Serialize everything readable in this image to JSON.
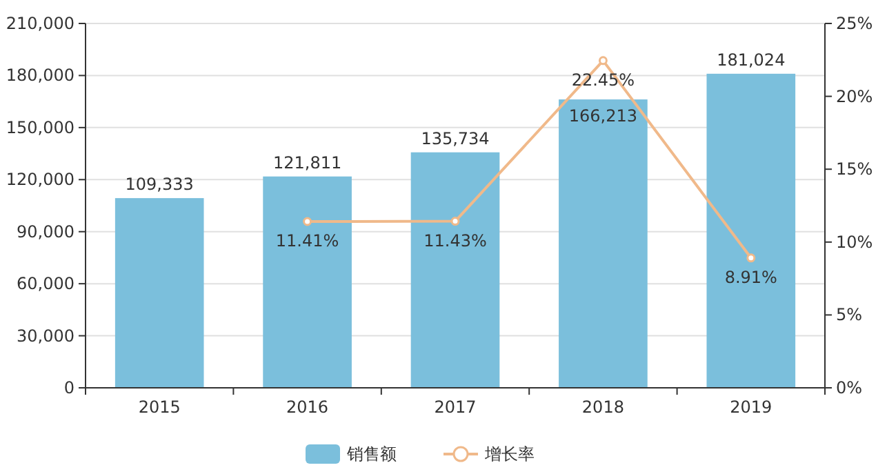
{
  "chart_data": {
    "type": "bar",
    "categories": [
      "2015",
      "2016",
      "2017",
      "2018",
      "2019"
    ],
    "series": [
      {
        "name": "销售额",
        "color": "#7bbfdc",
        "values": [
          109333,
          121811,
          135734,
          166213,
          181024
        ],
        "value_labels": [
          "109,333",
          "121,811",
          "135,734",
          "166,213",
          "181,024"
        ]
      },
      {
        "name": "增长率",
        "type": "line",
        "axis": "y2",
        "color": "#f0b98a",
        "values": [
          null,
          11.41,
          11.43,
          22.45,
          8.91
        ],
        "value_labels": [
          null,
          "11.41%",
          "11.43%",
          "22.45%",
          "8.91%"
        ]
      }
    ],
    "ylim": [
      0,
      210000
    ],
    "yticks": [
      {
        "value": 0,
        "label": "0"
      },
      {
        "value": 30000,
        "label": "30,000"
      },
      {
        "value": 60000,
        "label": "60,000"
      },
      {
        "value": 90000,
        "label": "90,000"
      },
      {
        "value": 120000,
        "label": "120,000"
      },
      {
        "value": 150000,
        "label": "150,000"
      },
      {
        "value": 180000,
        "label": "180,000"
      },
      {
        "value": 210000,
        "label": "210,000"
      }
    ],
    "y2lim": [
      0,
      25
    ],
    "y2ticks": [
      {
        "value": 0,
        "label": "0%"
      },
      {
        "value": 5,
        "label": "5%"
      },
      {
        "value": 10,
        "label": "10%"
      },
      {
        "value": 15,
        "label": "15%"
      },
      {
        "value": 20,
        "label": "20%"
      },
      {
        "value": 25,
        "label": "25%"
      }
    ],
    "grid": "y",
    "legend": "bottom",
    "marker": "circle",
    "line_style": "solid"
  }
}
